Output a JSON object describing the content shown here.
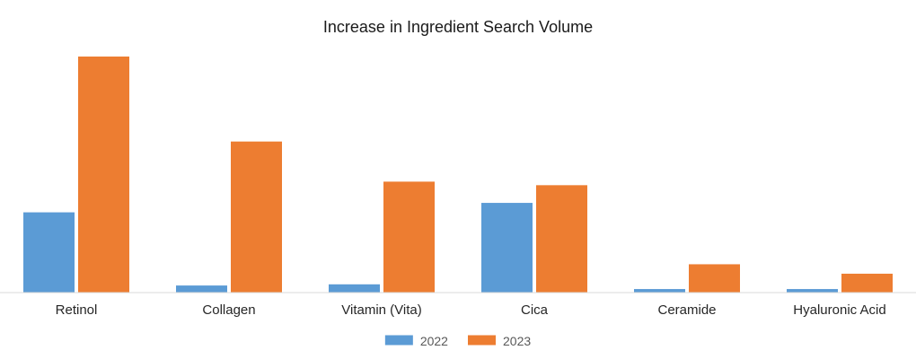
{
  "chart_data": {
    "type": "bar",
    "title": "Increase in Ingredient Search Volume",
    "xlabel": "",
    "ylabel": "",
    "categories": [
      "Retinol",
      "Collagen",
      "Vitamin (Vita)",
      "Cica",
      "Ceramide",
      "Hyaluronic Acid"
    ],
    "series": [
      {
        "name": "2022",
        "color": "#5b9bd5",
        "values": [
          34,
          3,
          3.5,
          38,
          1.5,
          1.5
        ]
      },
      {
        "name": "2023",
        "color": "#ed7d31",
        "values": [
          100,
          64,
          47,
          45.5,
          12,
          8
        ]
      }
    ],
    "ylim": [
      0,
      100
    ],
    "grid": false,
    "legend": "bottom-center"
  }
}
